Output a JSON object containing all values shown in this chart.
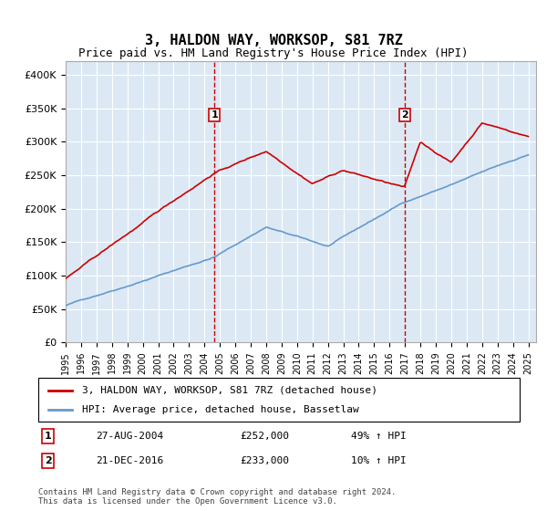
{
  "title": "3, HALDON WAY, WORKSOP, S81 7RZ",
  "subtitle": "Price paid vs. HM Land Registry's House Price Index (HPI)",
  "bg_color": "#dce9f5",
  "plot_bg": "#dce9f5",
  "red_color": "#cc0000",
  "blue_color": "#6699cc",
  "vline_color": "#cc0000",
  "ylim": [
    0,
    420000
  ],
  "yticks": [
    0,
    50000,
    100000,
    150000,
    200000,
    250000,
    300000,
    350000,
    400000
  ],
  "sale1": {
    "date_num": 2004.65,
    "price": 252000,
    "label": "1",
    "date_str": "27-AUG-2004",
    "pct": "49% ↑ HPI"
  },
  "sale2": {
    "date_num": 2016.97,
    "price": 233000,
    "label": "2",
    "date_str": "21-DEC-2016",
    "pct": "10% ↑ HPI"
  },
  "legend_line1": "3, HALDON WAY, WORKSOP, S81 7RZ (detached house)",
  "legend_line2": "HPI: Average price, detached house, Bassetlaw",
  "table_row1": [
    "1",
    "27-AUG-2004",
    "£252,000",
    "49% ↑ HPI"
  ],
  "table_row2": [
    "2",
    "21-DEC-2016",
    "£233,000",
    "10% ↑ HPI"
  ],
  "footnote": "Contains HM Land Registry data © Crown copyright and database right 2024.\nThis data is licensed under the Open Government Licence v3.0.",
  "xmin": 1995,
  "xmax": 2025.5
}
